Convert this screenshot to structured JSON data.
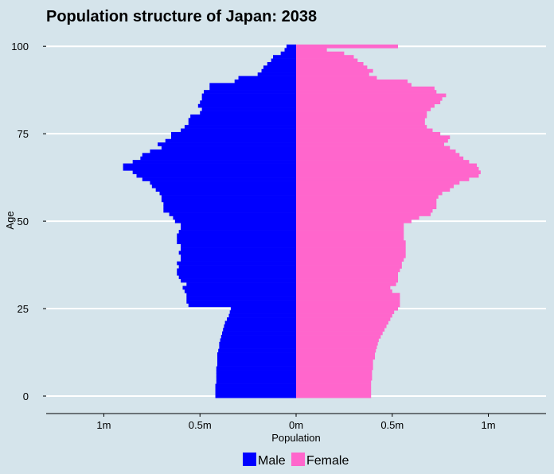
{
  "chart_data": {
    "type": "bar",
    "orientation": "horizontal-pyramid",
    "title": "Population structure of Japan:  2038",
    "xlabel": "Population",
    "ylabel": "Age",
    "xlim": [
      -1.3,
      1.3
    ],
    "ylim": [
      -5,
      103
    ],
    "x_ticks": [
      -1,
      -0.5,
      0,
      0.5,
      1
    ],
    "x_tick_labels": [
      "1m",
      "0.5m",
      "0m",
      "0.5m",
      "1m"
    ],
    "y_ticks": [
      0,
      25,
      50,
      75,
      100
    ],
    "y_tick_labels": [
      "0",
      "25",
      "50",
      "75",
      "100"
    ],
    "grid": "horizontal major only",
    "legend_position": "bottom",
    "ages": [
      0,
      1,
      2,
      3,
      4,
      5,
      6,
      7,
      8,
      9,
      10,
      11,
      12,
      13,
      14,
      15,
      16,
      17,
      18,
      19,
      20,
      21,
      22,
      23,
      24,
      25,
      26,
      27,
      28,
      29,
      30,
      31,
      32,
      33,
      34,
      35,
      36,
      37,
      38,
      39,
      40,
      41,
      42,
      43,
      44,
      45,
      46,
      47,
      48,
      49,
      50,
      51,
      52,
      53,
      54,
      55,
      56,
      57,
      58,
      59,
      60,
      61,
      62,
      63,
      64,
      65,
      66,
      67,
      68,
      69,
      70,
      71,
      72,
      73,
      74,
      75,
      76,
      77,
      78,
      79,
      80,
      81,
      82,
      83,
      84,
      85,
      86,
      87,
      88,
      89,
      90,
      91,
      92,
      93,
      94,
      95,
      96,
      97,
      98,
      99,
      100
    ],
    "series": [
      {
        "name": "Male",
        "color": "#0000ff",
        "values_millions": [
          0.42,
          0.42,
          0.42,
          0.42,
          0.415,
          0.415,
          0.415,
          0.415,
          0.415,
          0.41,
          0.41,
          0.41,
          0.41,
          0.405,
          0.4,
          0.4,
          0.395,
          0.39,
          0.385,
          0.38,
          0.375,
          0.37,
          0.36,
          0.35,
          0.345,
          0.34,
          0.56,
          0.57,
          0.57,
          0.57,
          0.58,
          0.59,
          0.57,
          0.6,
          0.61,
          0.62,
          0.62,
          0.61,
          0.62,
          0.6,
          0.6,
          0.61,
          0.6,
          0.6,
          0.62,
          0.62,
          0.62,
          0.61,
          0.6,
          0.6,
          0.63,
          0.64,
          0.66,
          0.69,
          0.69,
          0.69,
          0.7,
          0.7,
          0.71,
          0.73,
          0.75,
          0.76,
          0.8,
          0.83,
          0.85,
          0.9,
          0.9,
          0.85,
          0.81,
          0.8,
          0.76,
          0.7,
          0.72,
          0.68,
          0.65,
          0.65,
          0.6,
          0.58,
          0.56,
          0.56,
          0.55,
          0.5,
          0.49,
          0.51,
          0.5,
          0.49,
          0.49,
          0.48,
          0.45,
          0.45,
          0.32,
          0.3,
          0.2,
          0.18,
          0.17,
          0.15,
          0.13,
          0.12,
          0.08,
          0.06,
          0.05
        ]
      },
      {
        "name": "Female",
        "color": "#ff66cc",
        "values_millions": [
          0.39,
          0.39,
          0.39,
          0.39,
          0.39,
          0.395,
          0.395,
          0.395,
          0.4,
          0.4,
          0.4,
          0.41,
          0.41,
          0.415,
          0.42,
          0.425,
          0.43,
          0.44,
          0.45,
          0.46,
          0.47,
          0.48,
          0.49,
          0.5,
          0.51,
          0.53,
          0.54,
          0.54,
          0.54,
          0.54,
          0.5,
          0.49,
          0.52,
          0.53,
          0.53,
          0.53,
          0.54,
          0.55,
          0.55,
          0.56,
          0.57,
          0.57,
          0.57,
          0.57,
          0.57,
          0.56,
          0.56,
          0.56,
          0.56,
          0.56,
          0.6,
          0.64,
          0.7,
          0.71,
          0.73,
          0.73,
          0.73,
          0.74,
          0.76,
          0.8,
          0.82,
          0.85,
          0.9,
          0.95,
          0.96,
          0.95,
          0.94,
          0.9,
          0.87,
          0.85,
          0.83,
          0.8,
          0.77,
          0.79,
          0.8,
          0.75,
          0.71,
          0.68,
          0.67,
          0.67,
          0.68,
          0.68,
          0.7,
          0.72,
          0.75,
          0.76,
          0.78,
          0.73,
          0.72,
          0.6,
          0.58,
          0.42,
          0.38,
          0.4,
          0.37,
          0.35,
          0.32,
          0.3,
          0.25,
          0.16,
          0.53
        ]
      }
    ]
  }
}
